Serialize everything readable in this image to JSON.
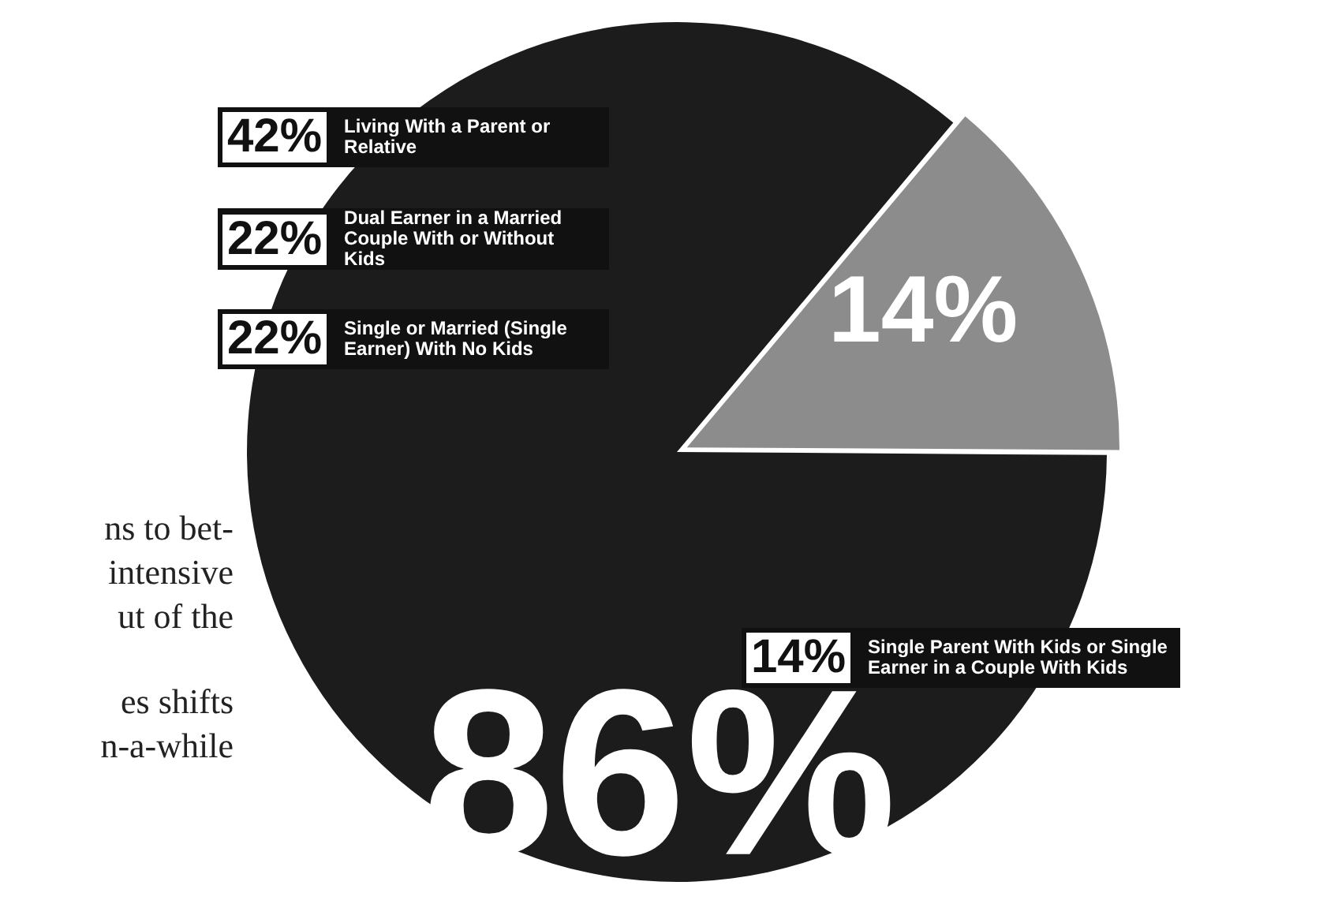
{
  "chart_data": {
    "type": "pie",
    "categories": [
      null,
      null
    ],
    "values": [
      14,
      86
    ],
    "colors": [
      "#8c8c8c",
      "#1c1c1c"
    ],
    "value_labels": [
      "14%",
      "86%"
    ],
    "legend": false,
    "annotations": [
      "42%",
      "Living With a Parent or Relative",
      "22%",
      "Dual Earner in a Married Couple With or Without Kids",
      "22%",
      "Single or Married (Single Earner) With No Kids",
      "14%",
      "Single Parent With Kids or Single Earner in a Couple With Kids",
      "ns to bet-",
      "intensive",
      "ut of the",
      "es shifts",
      "n-a-while"
    ]
  }
}
